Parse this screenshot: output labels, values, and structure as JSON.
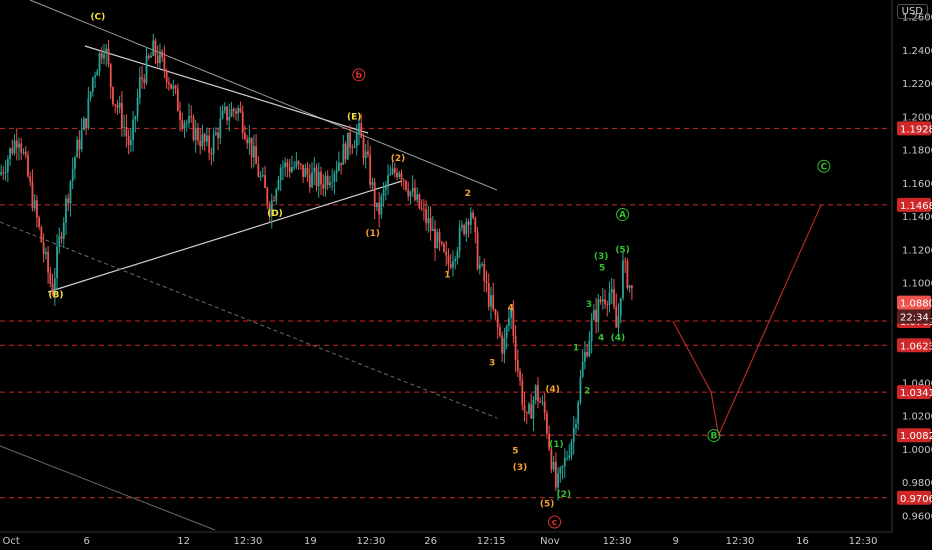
{
  "currency_button": "USD",
  "countdown": "22:34",
  "chart_data": {
    "type": "candlestick",
    "ylim": [
      0.95,
      1.27
    ],
    "y_ticks": [
      "1.2600",
      "1.2400",
      "1.2200",
      "1.2000",
      "1.1800",
      "1.1600",
      "1.1400",
      "1.1200",
      "1.1000",
      "1.0400",
      "1.0200",
      "1.0000",
      "0.9800",
      "0.9600"
    ],
    "x_ticks": [
      "Oct",
      "6",
      "12",
      "12:30",
      "19",
      "12:30",
      "26",
      "12:15",
      "Nov",
      "12:30",
      "9",
      "12:30",
      "16",
      "12:30"
    ],
    "x_tick_pos": [
      0.012,
      0.093,
      0.197,
      0.266,
      0.333,
      0.398,
      0.462,
      0.527,
      0.59,
      0.662,
      0.725,
      0.794,
      0.861,
      0.926
    ],
    "price_levels": [
      "1.1928",
      "1.1468",
      "1.0769",
      "1.0623",
      "1.0341",
      "1.0082",
      "0.9706"
    ],
    "last_price": "1.0880",
    "price_path": [
      [
        0.0,
        1.165
      ],
      [
        0.02,
        1.19
      ],
      [
        0.035,
        1.15
      ],
      [
        0.05,
        1.11
      ],
      [
        0.056,
        1.095
      ],
      [
        0.065,
        1.13
      ],
      [
        0.08,
        1.175
      ],
      [
        0.093,
        1.2
      ],
      [
        0.1,
        1.225
      ],
      [
        0.112,
        1.245
      ],
      [
        0.12,
        1.215
      ],
      [
        0.13,
        1.2
      ],
      [
        0.14,
        1.18
      ],
      [
        0.15,
        1.22
      ],
      [
        0.165,
        1.24
      ],
      [
        0.18,
        1.225
      ],
      [
        0.195,
        1.2
      ],
      [
        0.21,
        1.19
      ],
      [
        0.225,
        1.18
      ],
      [
        0.24,
        1.2
      ],
      [
        0.255,
        1.205
      ],
      [
        0.265,
        1.19
      ],
      [
        0.275,
        1.17
      ],
      [
        0.29,
        1.145
      ],
      [
        0.3,
        1.17
      ],
      [
        0.315,
        1.17
      ],
      [
        0.33,
        1.165
      ],
      [
        0.345,
        1.16
      ],
      [
        0.36,
        1.17
      ],
      [
        0.375,
        1.185
      ],
      [
        0.385,
        1.19
      ],
      [
        0.395,
        1.17
      ],
      [
        0.405,
        1.14
      ],
      [
        0.415,
        1.16
      ],
      [
        0.428,
        1.17
      ],
      [
        0.44,
        1.155
      ],
      [
        0.46,
        1.135
      ],
      [
        0.48,
        1.11
      ],
      [
        0.495,
        1.13
      ],
      [
        0.505,
        1.145
      ],
      [
        0.512,
        1.115
      ],
      [
        0.52,
        1.1
      ],
      [
        0.53,
        1.08
      ],
      [
        0.54,
        1.06
      ],
      [
        0.548,
        1.085
      ],
      [
        0.555,
        1.05
      ],
      [
        0.565,
        1.015
      ],
      [
        0.575,
        1.035
      ],
      [
        0.585,
        1.02
      ],
      [
        0.59,
        1.0
      ],
      [
        0.597,
        0.975
      ],
      [
        0.605,
        0.99
      ],
      [
        0.615,
        1.01
      ],
      [
        0.625,
        1.05
      ],
      [
        0.635,
        1.075
      ],
      [
        0.645,
        1.09
      ],
      [
        0.655,
        1.095
      ],
      [
        0.662,
        1.07
      ],
      [
        0.668,
        1.11
      ],
      [
        0.672,
        1.105
      ],
      [
        0.68,
        1.09
      ]
    ],
    "projection": [
      "1.0341",
      "1.0082",
      "1.1468"
    ],
    "annotations": [
      {
        "text": "(C)",
        "color": "#f0e040",
        "t": 0.105,
        "p": 1.26
      },
      {
        "text": "(B)",
        "color": "#f0e040",
        "t": 0.06,
        "p": 1.093
      },
      {
        "text": "(D)",
        "color": "#f0e040",
        "t": 0.295,
        "p": 1.142
      },
      {
        "text": "(E)",
        "color": "#f0e040",
        "t": 0.38,
        "p": 1.2
      },
      {
        "text": "b",
        "color": "#e03030",
        "t": 0.385,
        "p": 1.225,
        "circle": true
      },
      {
        "text": "(1)",
        "color": "#f0a030",
        "t": 0.4,
        "p": 1.13
      },
      {
        "text": "(2)",
        "color": "#f0a030",
        "t": 0.427,
        "p": 1.175
      },
      {
        "text": "1",
        "color": "#f0a030",
        "t": 0.48,
        "p": 1.105
      },
      {
        "text": "2",
        "color": "#f0a030",
        "t": 0.502,
        "p": 1.154
      },
      {
        "text": "3",
        "color": "#f0a030",
        "t": 0.528,
        "p": 1.052
      },
      {
        "text": "4",
        "color": "#f0a030",
        "t": 0.548,
        "p": 1.085
      },
      {
        "text": "5",
        "color": "#f0a030",
        "t": 0.553,
        "p": 0.999
      },
      {
        "text": "(3)",
        "color": "#f0a030",
        "t": 0.558,
        "p": 0.989
      },
      {
        "text": "(4)",
        "color": "#f0a030",
        "t": 0.593,
        "p": 1.036
      },
      {
        "text": "(5)",
        "color": "#f0a030",
        "t": 0.587,
        "p": 0.967
      },
      {
        "text": "(1)",
        "color": "#30c030",
        "t": 0.597,
        "p": 1.003
      },
      {
        "text": "(2)",
        "color": "#30c030",
        "t": 0.605,
        "p": 0.973
      },
      {
        "text": "1",
        "color": "#30c030",
        "t": 0.618,
        "p": 1.061
      },
      {
        "text": "2",
        "color": "#30c030",
        "t": 0.63,
        "p": 1.035
      },
      {
        "text": "3",
        "color": "#30c030",
        "t": 0.632,
        "p": 1.087
      },
      {
        "text": "4",
        "color": "#30c030",
        "t": 0.645,
        "p": 1.067
      },
      {
        "text": "(3)",
        "color": "#30c030",
        "t": 0.645,
        "p": 1.116
      },
      {
        "text": "5",
        "color": "#30c030",
        "t": 0.646,
        "p": 1.109
      },
      {
        "text": "(4)",
        "color": "#30c030",
        "t": 0.663,
        "p": 1.067
      },
      {
        "text": "(5)",
        "color": "#30c030",
        "t": 0.668,
        "p": 1.12
      },
      {
        "text": "A",
        "color": "#30c030",
        "t": 0.668,
        "p": 1.141,
        "circle": true
      },
      {
        "text": "B",
        "color": "#30c030",
        "t": 0.766,
        "p": 1.008,
        "circle": true
      },
      {
        "text": "C",
        "color": "#30c030",
        "t": 0.884,
        "p": 1.17,
        "circle": true
      },
      {
        "text": "c",
        "color": "#e03030",
        "t": 0.595,
        "p": 0.956,
        "circle": true
      }
    ]
  }
}
